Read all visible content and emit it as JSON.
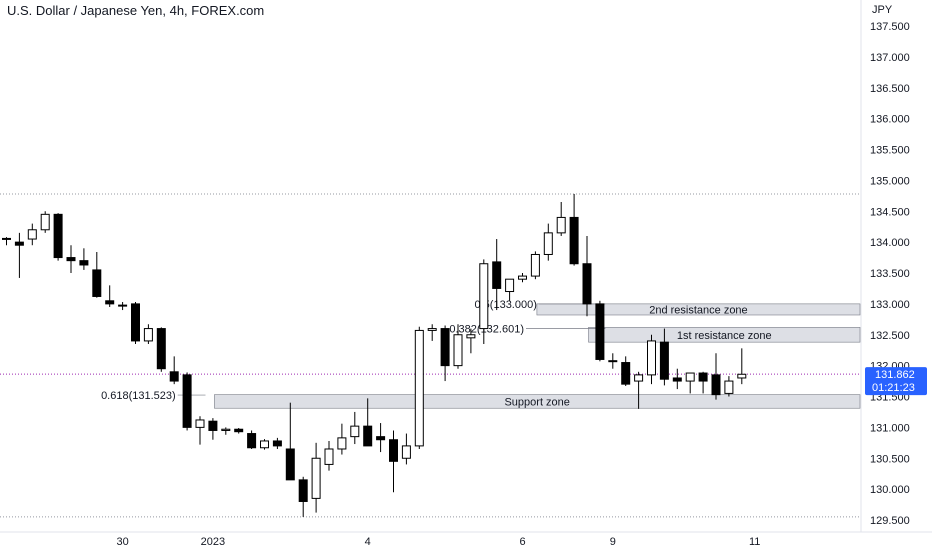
{
  "title": "U.S. Dollar / Japanese Yen, 4h, FOREX.com",
  "colors": {
    "candle": "#000000",
    "zone_fill": "#d1d4dc",
    "price_line": "#9c27b0",
    "badge_bg": "#2962ff",
    "dotted": "#9598a1"
  },
  "chart_data": {
    "type": "candlestick",
    "y_axis": {
      "unit_label": "JPY",
      "ticks": [
        "137.500",
        "137.000",
        "136.500",
        "136.000",
        "135.500",
        "135.000",
        "134.500",
        "134.000",
        "133.500",
        "133.000",
        "132.500",
        "132.000",
        "131.500",
        "131.000",
        "130.500",
        "130.000",
        "129.500"
      ],
      "tick_values": [
        137.5,
        137.0,
        136.5,
        136.0,
        135.5,
        135.0,
        134.5,
        134.0,
        133.5,
        133.0,
        132.5,
        132.0,
        131.5,
        131.0,
        130.5,
        130.0,
        129.5
      ],
      "range": [
        129.4,
        137.78
      ]
    },
    "x_axis": {
      "labels": [
        {
          "text": "30",
          "index": 9
        },
        {
          "text": "2023",
          "index": 16
        },
        {
          "text": "4",
          "index": 28
        },
        {
          "text": "6",
          "index": 40
        },
        {
          "text": "9",
          "index": 47
        },
        {
          "text": "11",
          "index": 58
        }
      ]
    },
    "candles": [
      {
        "o": 134.06,
        "h": 134.08,
        "l": 133.95,
        "c": 134.05
      },
      {
        "o": 134.0,
        "h": 134.15,
        "l": 133.42,
        "c": 133.95
      },
      {
        "o": 134.05,
        "h": 134.3,
        "l": 133.95,
        "c": 134.2
      },
      {
        "o": 134.2,
        "h": 134.5,
        "l": 134.15,
        "c": 134.45
      },
      {
        "o": 134.45,
        "h": 134.47,
        "l": 133.7,
        "c": 133.75
      },
      {
        "o": 133.75,
        "h": 133.95,
        "l": 133.5,
        "c": 133.7
      },
      {
        "o": 133.7,
        "h": 133.9,
        "l": 133.55,
        "c": 133.63
      },
      {
        "o": 133.55,
        "h": 133.84,
        "l": 133.1,
        "c": 133.12
      },
      {
        "o": 133.05,
        "h": 133.3,
        "l": 132.95,
        "c": 133.0
      },
      {
        "o": 132.98,
        "h": 133.03,
        "l": 132.9,
        "c": 132.97
      },
      {
        "o": 133.0,
        "h": 133.03,
        "l": 132.35,
        "c": 132.4
      },
      {
        "o": 132.4,
        "h": 132.67,
        "l": 132.35,
        "c": 132.6
      },
      {
        "o": 132.6,
        "h": 132.62,
        "l": 131.9,
        "c": 131.95
      },
      {
        "o": 131.9,
        "h": 132.15,
        "l": 131.7,
        "c": 131.75
      },
      {
        "o": 131.85,
        "h": 131.89,
        "l": 130.95,
        "c": 131.0
      },
      {
        "o": 131.0,
        "h": 131.18,
        "l": 130.72,
        "c": 131.12
      },
      {
        "o": 131.1,
        "h": 131.15,
        "l": 130.8,
        "c": 130.95
      },
      {
        "o": 130.95,
        "h": 131.0,
        "l": 130.88,
        "c": 130.97
      },
      {
        "o": 130.97,
        "h": 130.99,
        "l": 130.9,
        "c": 130.93
      },
      {
        "o": 130.9,
        "h": 130.95,
        "l": 130.65,
        "c": 130.67
      },
      {
        "o": 130.67,
        "h": 130.81,
        "l": 130.64,
        "c": 130.78
      },
      {
        "o": 130.78,
        "h": 130.83,
        "l": 130.65,
        "c": 130.7
      },
      {
        "o": 130.65,
        "h": 131.4,
        "l": 130.15,
        "c": 130.15
      },
      {
        "o": 130.15,
        "h": 130.2,
        "l": 129.55,
        "c": 129.8
      },
      {
        "o": 129.85,
        "h": 130.75,
        "l": 129.62,
        "c": 130.5
      },
      {
        "o": 130.4,
        "h": 130.78,
        "l": 130.3,
        "c": 130.65
      },
      {
        "o": 130.65,
        "h": 131.06,
        "l": 130.56,
        "c": 130.83
      },
      {
        "o": 130.85,
        "h": 131.25,
        "l": 130.73,
        "c": 131.02
      },
      {
        "o": 131.02,
        "h": 131.47,
        "l": 130.7,
        "c": 130.7
      },
      {
        "o": 130.85,
        "h": 131.07,
        "l": 130.6,
        "c": 130.8
      },
      {
        "o": 130.8,
        "h": 130.95,
        "l": 129.95,
        "c": 130.45
      },
      {
        "o": 130.5,
        "h": 130.9,
        "l": 130.4,
        "c": 130.7
      },
      {
        "o": 130.7,
        "h": 132.63,
        "l": 130.65,
        "c": 132.57
      },
      {
        "o": 132.57,
        "h": 132.67,
        "l": 132.4,
        "c": 132.6
      },
      {
        "o": 132.6,
        "h": 132.65,
        "l": 131.75,
        "c": 132.0
      },
      {
        "o": 132.0,
        "h": 132.67,
        "l": 131.95,
        "c": 132.5
      },
      {
        "o": 132.45,
        "h": 132.6,
        "l": 132.2,
        "c": 132.5
      },
      {
        "o": 132.6,
        "h": 133.72,
        "l": 132.35,
        "c": 133.65
      },
      {
        "o": 133.68,
        "h": 134.05,
        "l": 132.9,
        "c": 133.25
      },
      {
        "o": 133.2,
        "h": 133.35,
        "l": 133.05,
        "c": 133.4
      },
      {
        "o": 133.4,
        "h": 133.5,
        "l": 133.35,
        "c": 133.45
      },
      {
        "o": 133.45,
        "h": 133.85,
        "l": 133.4,
        "c": 133.8
      },
      {
        "o": 133.8,
        "h": 134.3,
        "l": 133.7,
        "c": 134.15
      },
      {
        "o": 134.15,
        "h": 134.65,
        "l": 134.1,
        "c": 134.4
      },
      {
        "o": 134.4,
        "h": 134.78,
        "l": 133.62,
        "c": 133.65
      },
      {
        "o": 133.65,
        "h": 134.1,
        "l": 132.8,
        "c": 133.0
      },
      {
        "o": 133.0,
        "h": 133.05,
        "l": 132.07,
        "c": 132.1
      },
      {
        "o": 132.08,
        "h": 132.2,
        "l": 131.95,
        "c": 132.08
      },
      {
        "o": 132.05,
        "h": 132.15,
        "l": 131.67,
        "c": 131.7
      },
      {
        "o": 131.75,
        "h": 131.9,
        "l": 131.3,
        "c": 131.85
      },
      {
        "o": 131.85,
        "h": 132.5,
        "l": 131.7,
        "c": 132.4
      },
      {
        "o": 132.38,
        "h": 132.6,
        "l": 131.68,
        "c": 131.78
      },
      {
        "o": 131.8,
        "h": 131.95,
        "l": 131.62,
        "c": 131.75
      },
      {
        "o": 131.75,
        "h": 131.88,
        "l": 131.55,
        "c": 131.88
      },
      {
        "o": 131.88,
        "h": 131.9,
        "l": 131.55,
        "c": 131.75
      },
      {
        "o": 131.85,
        "h": 132.2,
        "l": 131.45,
        "c": 131.53
      },
      {
        "o": 131.55,
        "h": 131.83,
        "l": 131.5,
        "c": 131.75
      },
      {
        "o": 131.8,
        "h": 132.28,
        "l": 131.7,
        "c": 131.86
      }
    ],
    "current_price": 131.862,
    "countdown": "01:21:23",
    "zones": [
      {
        "label": "2nd resistance zone",
        "low": 132.82,
        "high": 133.0,
        "x_start_index": 41
      },
      {
        "label": "1st resistance zone",
        "low": 132.38,
        "high": 132.62,
        "x_start_index": 45
      },
      {
        "label": "Support zone",
        "low": 131.31,
        "high": 131.53,
        "x_start_index": 16
      }
    ],
    "fibonacci": [
      {
        "label": "0.5(133.000)",
        "price": 133.0,
        "x_start_index": 41,
        "x_end_index": 46
      },
      {
        "label": "0.382(132.601)",
        "price": 132.601,
        "x_start_index": 40,
        "x_end_index": 46
      },
      {
        "label": "0.618(131.523)",
        "price": 131.523,
        "x_start_index": 13,
        "x_end_index": 15
      }
    ],
    "range_lines": [
      134.78,
      129.55
    ]
  }
}
